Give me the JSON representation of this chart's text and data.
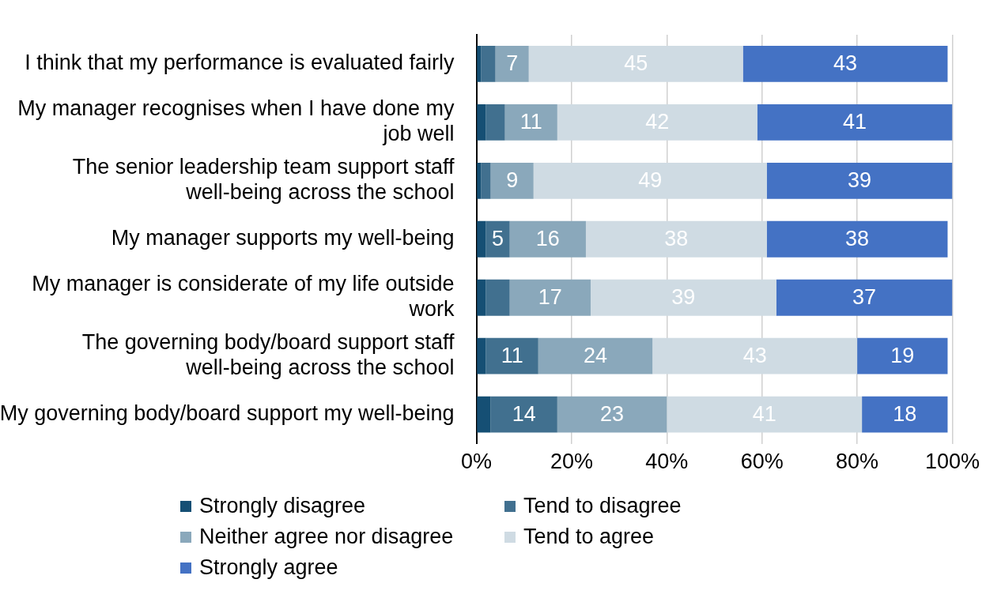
{
  "chart_data": {
    "type": "bar",
    "orientation": "horizontal",
    "stacked": true,
    "categories": [
      "I think that my performance is evaluated fairly",
      "My manager recognises when I have done my job well",
      "The senior leadership team support staff well-being across the school",
      "My manager supports my well-being",
      "My manager is considerate of my life outside work",
      "The governing body/board support staff well-being across the school",
      "My governing body/board support my well-being"
    ],
    "series": [
      {
        "name": "Strongly disagree",
        "color": "#154f74",
        "values": [
          1,
          2,
          1,
          2,
          2,
          2,
          3
        ],
        "value_labels": [
          null,
          null,
          null,
          null,
          null,
          null,
          null
        ]
      },
      {
        "name": "Tend to disagree",
        "color": "#41708f",
        "values": [
          3,
          4,
          2,
          5,
          5,
          11,
          14
        ],
        "value_labels": [
          null,
          null,
          null,
          "5",
          null,
          "11",
          "14"
        ]
      },
      {
        "name": "Neither agree nor disagree",
        "color": "#8aa8bb",
        "values": [
          7,
          11,
          9,
          16,
          17,
          24,
          23
        ],
        "value_labels": [
          "7",
          "11",
          "9",
          "16",
          "17",
          "24",
          "23"
        ]
      },
      {
        "name": "Tend to agree",
        "color": "#cfdbe3",
        "values": [
          45,
          42,
          49,
          38,
          39,
          43,
          41
        ],
        "value_labels": [
          "45",
          "42",
          "49",
          "38",
          "39",
          "43",
          "41"
        ]
      },
      {
        "name": "Strongly agree",
        "color": "#4472c4",
        "values": [
          43,
          41,
          39,
          38,
          37,
          19,
          18
        ],
        "value_labels": [
          "43",
          "41",
          "39",
          "38",
          "37",
          "19",
          "18"
        ]
      }
    ],
    "xlim": [
      0,
      100
    ],
    "xticks": [
      {
        "value": 0,
        "label": "0%"
      },
      {
        "value": 20,
        "label": "20%"
      },
      {
        "value": 40,
        "label": "40%"
      },
      {
        "value": 60,
        "label": "60%"
      },
      {
        "value": 80,
        "label": "80%"
      },
      {
        "value": 100,
        "label": "100%"
      }
    ],
    "grid": "x",
    "legend": "bottom"
  }
}
